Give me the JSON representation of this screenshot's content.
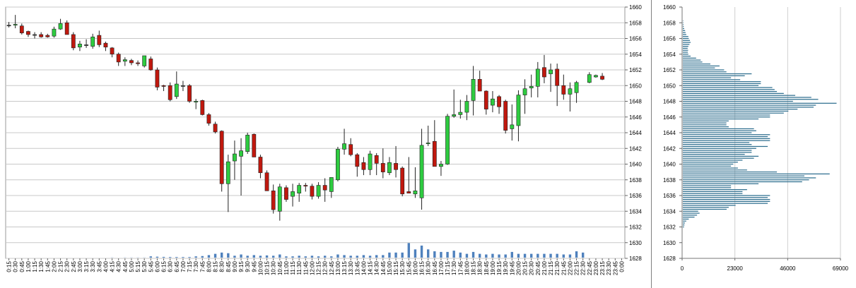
{
  "chart_data": [
    {
      "type": "candlestick",
      "title": "",
      "ylim": [
        1628,
        1660
      ],
      "y_ticks": [
        "1628",
        "1630",
        "1632",
        "1634",
        "1636",
        "1638",
        "1640",
        "1642",
        "1644",
        "1646",
        "1648",
        "1650",
        "1652",
        "1654",
        "1656",
        "1658",
        "1660"
      ],
      "x_ticks": [
        "0:15",
        "0:30",
        "0:45",
        "1:00",
        "1:15",
        "1:30",
        "1:45",
        "2:00",
        "2:15",
        "2:30",
        "2:45",
        "3:00",
        "3:15",
        "3:30",
        "3:45",
        "4:00",
        "4:15",
        "4:30",
        "4:45",
        "5:00",
        "5:15",
        "5:30",
        "5:45",
        "6:00",
        "6:15",
        "6:30",
        "6:45",
        "7:00",
        "7:15",
        "7:30",
        "7:45",
        "8:00",
        "8:15",
        "8:30",
        "8:45",
        "9:00",
        "9:15",
        "9:30",
        "9:45",
        "10:00",
        "10:15",
        "10:30",
        "10:45",
        "11:00",
        "11:15",
        "11:30",
        "11:45",
        "12:00",
        "12:15",
        "12:30",
        "12:45",
        "13:00",
        "13:15",
        "13:30",
        "13:45",
        "14:00",
        "14:15",
        "14:30",
        "14:45",
        "15:00",
        "15:15",
        "15:30",
        "15:45",
        "16:00",
        "16:15",
        "16:30",
        "16:45",
        "17:00",
        "17:15",
        "17:30",
        "17:45",
        "18:00",
        "18:15",
        "18:30",
        "18:45",
        "19:00",
        "19:15",
        "19:30",
        "19:45",
        "20:00",
        "20:15",
        "20:30",
        "20:45",
        "21:00",
        "21:15",
        "21:30",
        "21:45",
        "22:00",
        "22:15",
        "22:30",
        "22:45",
        "23:00",
        "23:15",
        "23:30",
        "23:45",
        "0:00"
      ],
      "grid": true,
      "colors": {
        "up": "#2ecc40",
        "down": "#c0180e",
        "flat": "#555555",
        "volume": "#4f81bd",
        "grid": "#c8c8c8"
      },
      "candles": [
        {
          "o": 1657.7,
          "h": 1658.1,
          "l": 1657.4,
          "c": 1657.7
        },
        {
          "o": 1657.7,
          "h": 1659.0,
          "l": 1657.3,
          "c": 1657.8
        },
        {
          "o": 1657.6,
          "h": 1657.9,
          "l": 1656.5,
          "c": 1656.7
        },
        {
          "o": 1656.9,
          "h": 1657.0,
          "l": 1656.2,
          "c": 1656.5
        },
        {
          "o": 1656.5,
          "h": 1656.8,
          "l": 1656.0,
          "c": 1656.5
        },
        {
          "o": 1656.5,
          "h": 1656.8,
          "l": 1656.1,
          "c": 1656.2
        },
        {
          "o": 1656.4,
          "h": 1656.6,
          "l": 1656.1,
          "c": 1656.2
        },
        {
          "o": 1656.3,
          "h": 1657.5,
          "l": 1656.1,
          "c": 1657.2
        },
        {
          "o": 1657.2,
          "h": 1658.5,
          "l": 1657.1,
          "c": 1657.9
        },
        {
          "o": 1658.0,
          "h": 1658.3,
          "l": 1656.5,
          "c": 1656.5
        },
        {
          "o": 1656.5,
          "h": 1656.8,
          "l": 1654.5,
          "c": 1654.8
        },
        {
          "o": 1654.9,
          "h": 1655.7,
          "l": 1654.4,
          "c": 1655.3
        },
        {
          "o": 1655.2,
          "h": 1655.9,
          "l": 1654.8,
          "c": 1655.2
        },
        {
          "o": 1655.0,
          "h": 1656.6,
          "l": 1654.7,
          "c": 1656.2
        },
        {
          "o": 1656.4,
          "h": 1657.0,
          "l": 1654.9,
          "c": 1655.2
        },
        {
          "o": 1655.4,
          "h": 1655.6,
          "l": 1654.4,
          "c": 1654.9
        },
        {
          "o": 1654.8,
          "h": 1654.9,
          "l": 1653.6,
          "c": 1654.0
        },
        {
          "o": 1654.0,
          "h": 1654.2,
          "l": 1652.5,
          "c": 1653.0
        },
        {
          "o": 1653.1,
          "h": 1653.6,
          "l": 1652.5,
          "c": 1653.3
        },
        {
          "o": 1653.2,
          "h": 1653.4,
          "l": 1652.6,
          "c": 1652.9
        },
        {
          "o": 1652.9,
          "h": 1653.2,
          "l": 1652.5,
          "c": 1652.8
        },
        {
          "o": 1652.5,
          "h": 1653.8,
          "l": 1652.3,
          "c": 1653.8
        },
        {
          "o": 1653.4,
          "h": 1653.7,
          "l": 1651.9,
          "c": 1652.0
        },
        {
          "o": 1652.0,
          "h": 1652.3,
          "l": 1649.4,
          "c": 1649.8
        },
        {
          "o": 1650.0,
          "h": 1650.1,
          "l": 1649.3,
          "c": 1649.9
        },
        {
          "o": 1650.0,
          "h": 1650.4,
          "l": 1648.0,
          "c": 1648.2
        },
        {
          "o": 1648.6,
          "h": 1651.8,
          "l": 1648.3,
          "c": 1650.2
        },
        {
          "o": 1650.0,
          "h": 1650.6,
          "l": 1649.3,
          "c": 1650.0
        },
        {
          "o": 1650.0,
          "h": 1650.2,
          "l": 1647.8,
          "c": 1648.0
        },
        {
          "o": 1647.9,
          "h": 1648.3,
          "l": 1647.0,
          "c": 1648.0
        },
        {
          "o": 1648.1,
          "h": 1648.2,
          "l": 1646.2,
          "c": 1646.3
        },
        {
          "o": 1646.3,
          "h": 1646.5,
          "l": 1644.9,
          "c": 1645.2
        },
        {
          "o": 1645.1,
          "h": 1645.4,
          "l": 1643.9,
          "c": 1644.1
        },
        {
          "o": 1644.2,
          "h": 1644.3,
          "l": 1636.5,
          "c": 1637.5
        },
        {
          "o": 1637.5,
          "h": 1641.2,
          "l": 1633.9,
          "c": 1640.3
        },
        {
          "o": 1640.4,
          "h": 1643.0,
          "l": 1638.0,
          "c": 1641.3
        },
        {
          "o": 1641.0,
          "h": 1643.3,
          "l": 1636.0,
          "c": 1641.7
        },
        {
          "o": 1641.6,
          "h": 1644.0,
          "l": 1641.3,
          "c": 1643.7
        },
        {
          "o": 1643.8,
          "h": 1643.9,
          "l": 1640.9,
          "c": 1640.9
        },
        {
          "o": 1640.9,
          "h": 1641.2,
          "l": 1638.2,
          "c": 1638.9
        },
        {
          "o": 1638.9,
          "h": 1639.2,
          "l": 1636.6,
          "c": 1636.6
        },
        {
          "o": 1636.6,
          "h": 1637.4,
          "l": 1633.7,
          "c": 1634.2
        },
        {
          "o": 1634.0,
          "h": 1637.5,
          "l": 1632.8,
          "c": 1637.1
        },
        {
          "o": 1637.0,
          "h": 1637.3,
          "l": 1635.2,
          "c": 1635.5
        },
        {
          "o": 1635.9,
          "h": 1637.5,
          "l": 1634.6,
          "c": 1636.5
        },
        {
          "o": 1636.3,
          "h": 1637.6,
          "l": 1635.2,
          "c": 1637.3
        },
        {
          "o": 1637.3,
          "h": 1637.6,
          "l": 1636.5,
          "c": 1637.2
        },
        {
          "o": 1637.2,
          "h": 1637.5,
          "l": 1635.5,
          "c": 1635.9
        },
        {
          "o": 1635.9,
          "h": 1637.7,
          "l": 1635.6,
          "c": 1637.3
        },
        {
          "o": 1637.3,
          "h": 1638.2,
          "l": 1635.2,
          "c": 1636.7
        },
        {
          "o": 1636.5,
          "h": 1638.3,
          "l": 1635.7,
          "c": 1638.3
        },
        {
          "o": 1638.0,
          "h": 1642.2,
          "l": 1637.8,
          "c": 1641.9
        },
        {
          "o": 1641.9,
          "h": 1644.5,
          "l": 1641.2,
          "c": 1642.6
        },
        {
          "o": 1642.5,
          "h": 1643.3,
          "l": 1641.0,
          "c": 1641.2
        },
        {
          "o": 1641.2,
          "h": 1641.4,
          "l": 1638.4,
          "c": 1639.7
        },
        {
          "o": 1640.2,
          "h": 1640.9,
          "l": 1638.6,
          "c": 1639.3
        },
        {
          "o": 1639.3,
          "h": 1641.7,
          "l": 1638.6,
          "c": 1641.3
        },
        {
          "o": 1641.1,
          "h": 1641.4,
          "l": 1638.6,
          "c": 1640.1
        },
        {
          "o": 1640.1,
          "h": 1642.0,
          "l": 1638.2,
          "c": 1639.0
        },
        {
          "o": 1638.9,
          "h": 1640.9,
          "l": 1638.6,
          "c": 1640.2
        },
        {
          "o": 1640.1,
          "h": 1642.3,
          "l": 1638.3,
          "c": 1639.3
        },
        {
          "o": 1639.5,
          "h": 1639.7,
          "l": 1635.9,
          "c": 1636.2
        },
        {
          "o": 1636.5,
          "h": 1640.9,
          "l": 1636.3,
          "c": 1636.3
        },
        {
          "o": 1636.2,
          "h": 1639.6,
          "l": 1635.7,
          "c": 1636.6
        },
        {
          "o": 1635.7,
          "h": 1644.5,
          "l": 1634.2,
          "c": 1642.4
        },
        {
          "o": 1642.6,
          "h": 1644.9,
          "l": 1642.3,
          "c": 1642.7
        },
        {
          "o": 1642.9,
          "h": 1645.6,
          "l": 1639.7,
          "c": 1639.7
        },
        {
          "o": 1639.7,
          "h": 1640.4,
          "l": 1638.5,
          "c": 1640.0
        },
        {
          "o": 1640.0,
          "h": 1646.4,
          "l": 1639.9,
          "c": 1646.1
        },
        {
          "o": 1646.1,
          "h": 1649.5,
          "l": 1645.9,
          "c": 1646.3
        },
        {
          "o": 1646.3,
          "h": 1648.2,
          "l": 1645.8,
          "c": 1646.6
        },
        {
          "o": 1646.6,
          "h": 1648.8,
          "l": 1645.6,
          "c": 1648.0
        },
        {
          "o": 1648.1,
          "h": 1652.5,
          "l": 1646.2,
          "c": 1650.8
        },
        {
          "o": 1650.8,
          "h": 1651.9,
          "l": 1649.3,
          "c": 1649.3
        },
        {
          "o": 1649.3,
          "h": 1649.4,
          "l": 1646.3,
          "c": 1647.0
        },
        {
          "o": 1647.5,
          "h": 1649.3,
          "l": 1646.6,
          "c": 1648.3
        },
        {
          "o": 1648.6,
          "h": 1648.8,
          "l": 1646.4,
          "c": 1647.3
        },
        {
          "o": 1648.0,
          "h": 1648.2,
          "l": 1643.9,
          "c": 1644.3
        },
        {
          "o": 1644.5,
          "h": 1647.6,
          "l": 1643.0,
          "c": 1645.0
        },
        {
          "o": 1644.9,
          "h": 1649.4,
          "l": 1642.9,
          "c": 1648.8
        },
        {
          "o": 1648.8,
          "h": 1650.8,
          "l": 1646.4,
          "c": 1649.6
        },
        {
          "o": 1649.7,
          "h": 1651.4,
          "l": 1648.5,
          "c": 1649.9
        },
        {
          "o": 1649.9,
          "h": 1653.0,
          "l": 1648.5,
          "c": 1652.1
        },
        {
          "o": 1652.3,
          "h": 1653.9,
          "l": 1650.3,
          "c": 1651.1
        },
        {
          "o": 1651.5,
          "h": 1652.8,
          "l": 1649.2,
          "c": 1652.0
        },
        {
          "o": 1652.1,
          "h": 1652.8,
          "l": 1647.4,
          "c": 1650.0
        },
        {
          "o": 1650.0,
          "h": 1651.4,
          "l": 1648.2,
          "c": 1648.9
        },
        {
          "o": 1648.9,
          "h": 1650.4,
          "l": 1646.7,
          "c": 1649.6
        },
        {
          "o": 1649.1,
          "h": 1650.6,
          "l": 1647.8,
          "c": 1650.4
        },
        null,
        {
          "o": 1650.4,
          "h": 1651.7,
          "l": 1650.3,
          "c": 1651.4
        },
        {
          "o": 1651.1,
          "h": 1651.4,
          "l": 1651.0,
          "c": 1651.3
        },
        {
          "o": 1651.2,
          "h": 1651.6,
          "l": 1650.7,
          "c": 1650.8
        },
        null,
        null,
        null
      ],
      "volume": [
        0,
        0,
        0,
        0,
        0,
        0,
        0,
        0,
        0,
        0,
        0,
        0,
        0,
        0,
        0,
        0,
        0.02,
        0,
        0.02,
        0.02,
        0.02,
        0.02,
        0.2,
        0.15,
        0.12,
        0.1,
        0.1,
        0.1,
        0.1,
        0.2,
        0.25,
        0.4,
        0.6,
        0.8,
        0.7,
        0.3,
        0.5,
        0.3,
        0.4,
        0.3,
        0.35,
        0.3,
        0.5,
        0.2,
        0.2,
        0.3,
        0.2,
        0.3,
        0.2,
        0.3,
        0.2,
        0.5,
        0.4,
        0.3,
        0.3,
        0.4,
        0.3,
        0.4,
        0.4,
        0.8,
        0.8,
        0.8,
        2.3,
        1.3,
        1.9,
        1.3,
        1.0,
        0.9,
        0.9,
        1.1,
        0.8,
        0.6,
        0.9,
        0.6,
        0.5,
        0.6,
        0.5,
        0.5,
        0.9,
        0.6,
        0.6,
        0.6,
        0.6,
        0.6,
        0.6,
        0.6,
        0.5,
        0.5,
        1.0,
        0.8,
        0,
        0,
        0,
        0,
        0,
        0
      ]
    },
    {
      "type": "horizontal-bar",
      "title": "",
      "ylim": [
        1628,
        1660
      ],
      "xlim": [
        0,
        69000
      ],
      "y_ticks": [
        "1628",
        "1630",
        "1632",
        "1634",
        "1636",
        "1638",
        "1640",
        "1642",
        "1644",
        "1646",
        "1648",
        "1650",
        "1652",
        "1654",
        "1656",
        "1658",
        "1660"
      ],
      "x_ticks": [
        "0",
        "23000",
        "46000",
        "69000"
      ],
      "grid": true,
      "price_step": 0.25,
      "price_start": 1632.0,
      "values": [
        500,
        700,
        900,
        1500,
        2600,
        5100,
        6200,
        7300,
        6700,
        19100,
        20000,
        23000,
        37000,
        38000,
        38000,
        37000,
        38000,
        26000,
        26000,
        28000,
        21000,
        21000,
        33000,
        52000,
        55000,
        58000,
        53000,
        64000,
        41000,
        28000,
        24000,
        21000,
        22000,
        24000,
        26000,
        31000,
        33000,
        27000,
        30000,
        30000,
        32000,
        37000,
        30000,
        29000,
        38000,
        38000,
        37000,
        38000,
        30000,
        32000,
        31000,
        20000,
        19000,
        19000,
        20000,
        33000,
        38000,
        38000,
        44000,
        46000,
        50000,
        57000,
        58000,
        67000,
        48000,
        59000,
        56000,
        49000,
        44000,
        41000,
        40000,
        39000,
        33000,
        34000,
        34000,
        25000,
        21000,
        27000,
        30000,
        19000,
        18000,
        14000,
        16000,
        12000,
        8500,
        7800,
        5800,
        3400,
        2400,
        2200,
        2300,
        2100,
        2400,
        2900,
        3400,
        3100,
        2600,
        2400,
        1500,
        1200,
        1000,
        600,
        400,
        300,
        200,
        100
      ]
    }
  ]
}
